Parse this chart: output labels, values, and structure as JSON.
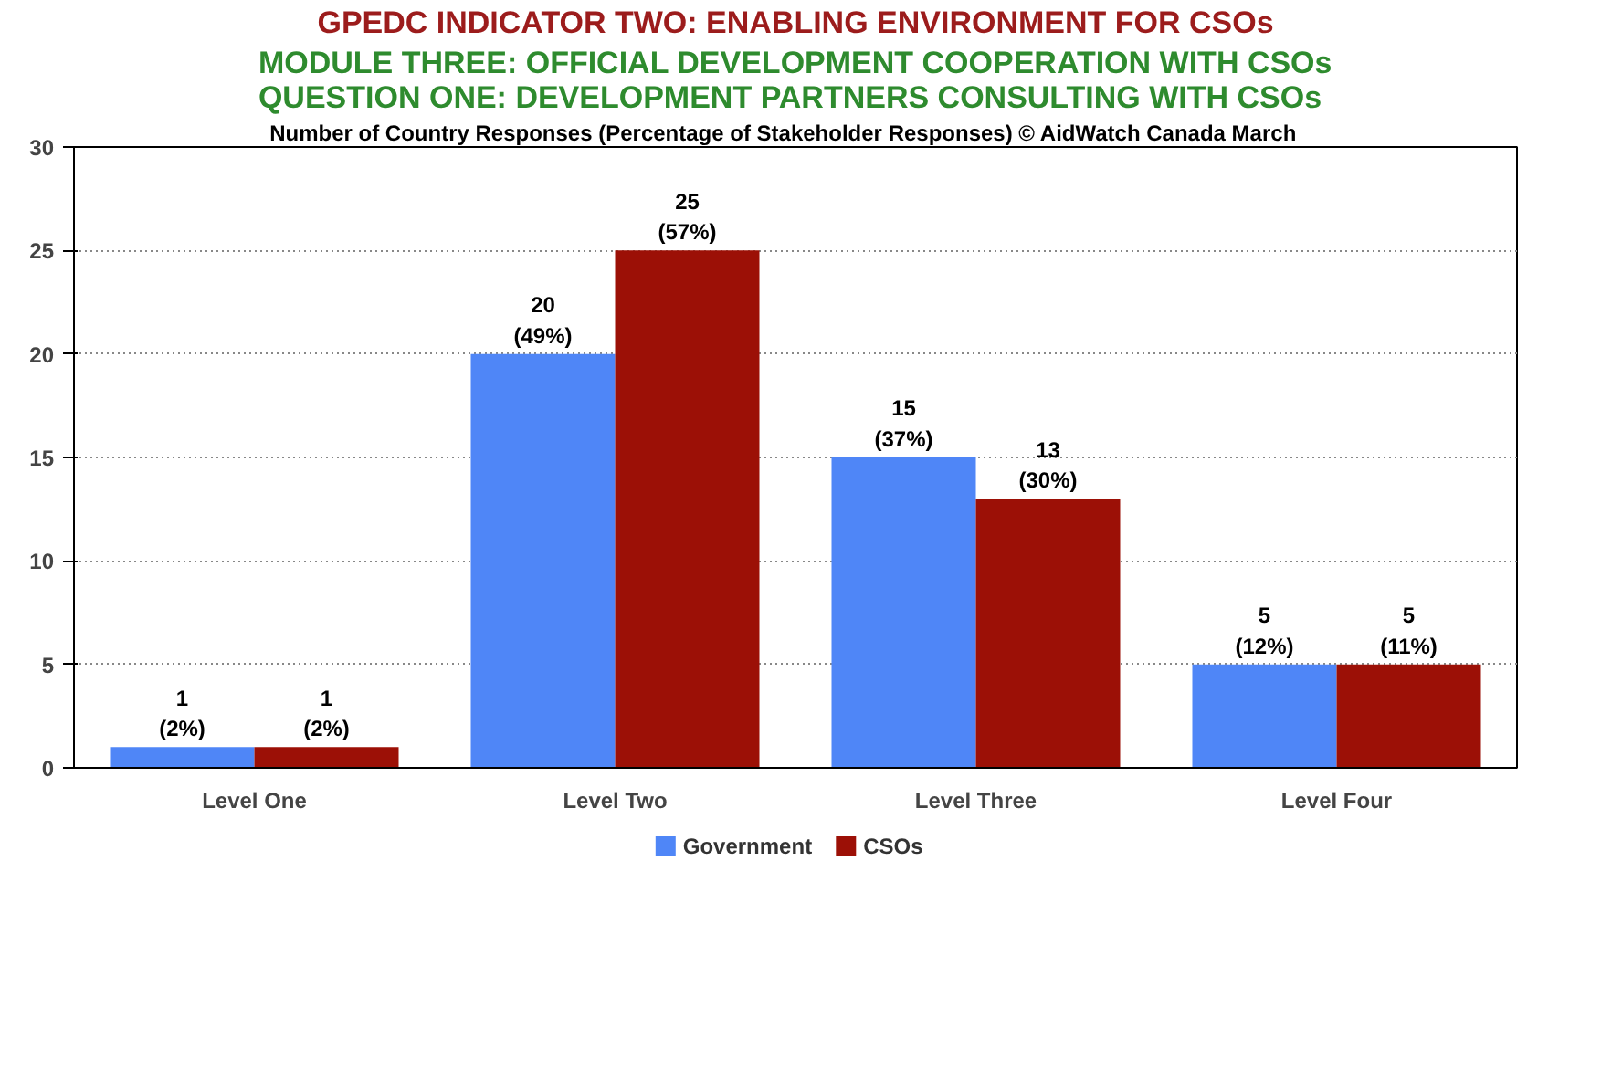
{
  "chart_data": {
    "type": "bar",
    "title": "GPEDC INDICATOR TWO: ENABLING ENVIRONMENT FOR CSOs",
    "subtitle": "MODULE THREE: OFFICIAL DEVELOPMENT COOPERATION WITH CSOs\nQUESTION ONE: DEVELOPMENT PARTNERS CONSULTING WITH CSOs",
    "annotations": [
      "Number of Country Responses (Percentage of Stakeholder Responses)     © AidWatch Canada March"
    ],
    "categories": [
      "Level One",
      "Level Two",
      "Level Three",
      "Level Four"
    ],
    "series": [
      {
        "name": "Government",
        "color": "#4f86f7",
        "values": [
          1,
          20,
          15,
          5
        ],
        "value_labels": [
          "1\n(2%)",
          "20\n(49%)",
          "15\n(37%)",
          "5\n(12%)"
        ]
      },
      {
        "name": "CSOs",
        "color": "#9c1006",
        "values": [
          1,
          25,
          13,
          5
        ],
        "value_labels": [
          "1\n(2%)",
          "25\n(57%)",
          "13\n(30%)",
          "5\n(11%)"
        ]
      }
    ],
    "ylim": [
      0,
      30
    ],
    "yticks": [
      0,
      5,
      10,
      15,
      20,
      25,
      30
    ],
    "grid": "y",
    "legend": "bottom"
  }
}
